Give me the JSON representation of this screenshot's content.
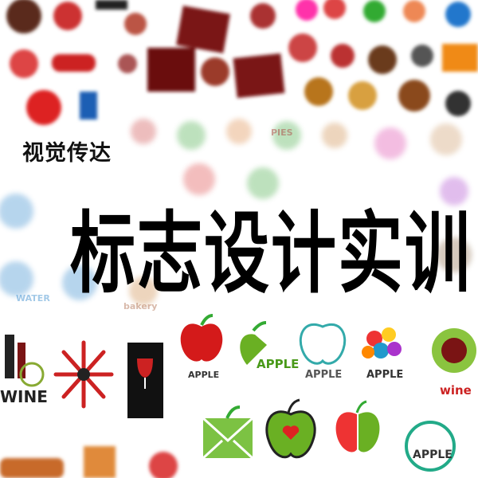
{
  "header": {
    "subtitle": "视觉传达",
    "title": "标志设计实训"
  },
  "logos": [
    {
      "label": "WATER"
    },
    {
      "label": "bakery"
    },
    {
      "label": "PIES"
    },
    {
      "label": "WINE"
    },
    {
      "label": "APPLE"
    },
    {
      "label": "APPLE"
    },
    {
      "label": "APPLE"
    },
    {
      "label": "APPLE"
    },
    {
      "label": "wine"
    },
    {
      "label": "APPLE"
    }
  ]
}
